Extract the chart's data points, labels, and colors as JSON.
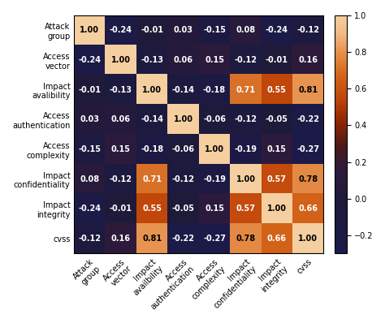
{
  "labels_y": [
    "Attack\ngroup",
    "Access\nvector",
    "Impact\navalibility",
    "Access\nauthentication",
    "Access\ncomplexity",
    "Impact\nconfidentiality",
    "Impact\nintegrity",
    "cvss"
  ],
  "labels_x": [
    "Attack\ngroup",
    "Access\nvector",
    "Impact\navailbility",
    "Access\nauthentication",
    "Access\ncomplexity",
    "Impact\nconfidentiality",
    "Impact\nintegrity",
    "cvss"
  ],
  "matrix": [
    [
      1.0,
      -0.24,
      -0.01,
      0.03,
      -0.15,
      0.08,
      -0.24,
      -0.12
    ],
    [
      -0.24,
      1.0,
      -0.13,
      0.06,
      0.15,
      -0.12,
      -0.01,
      0.16
    ],
    [
      -0.01,
      -0.13,
      1.0,
      -0.14,
      -0.18,
      0.71,
      0.55,
      0.81
    ],
    [
      0.03,
      0.06,
      -0.14,
      1.0,
      -0.06,
      -0.12,
      -0.05,
      -0.22
    ],
    [
      -0.15,
      0.15,
      -0.18,
      -0.06,
      1.0,
      -0.19,
      0.15,
      -0.27
    ],
    [
      0.08,
      -0.12,
      0.71,
      -0.12,
      -0.19,
      1.0,
      0.57,
      0.78
    ],
    [
      -0.24,
      -0.01,
      0.55,
      -0.05,
      0.15,
      0.57,
      1.0,
      0.66
    ],
    [
      -0.12,
      0.16,
      0.81,
      -0.22,
      -0.27,
      0.78,
      0.66,
      1.0
    ]
  ],
  "vmin": -0.3,
  "vmax": 1.0,
  "figsize": [
    4.74,
    3.98
  ],
  "dpi": 100,
  "colorbar_ticks": [
    1.0,
    0.8,
    0.6,
    0.4,
    0.2,
    0.0,
    -0.2
  ],
  "annotation_fontsize": 7,
  "label_fontsize": 7,
  "colorbar_fontsize": 7
}
